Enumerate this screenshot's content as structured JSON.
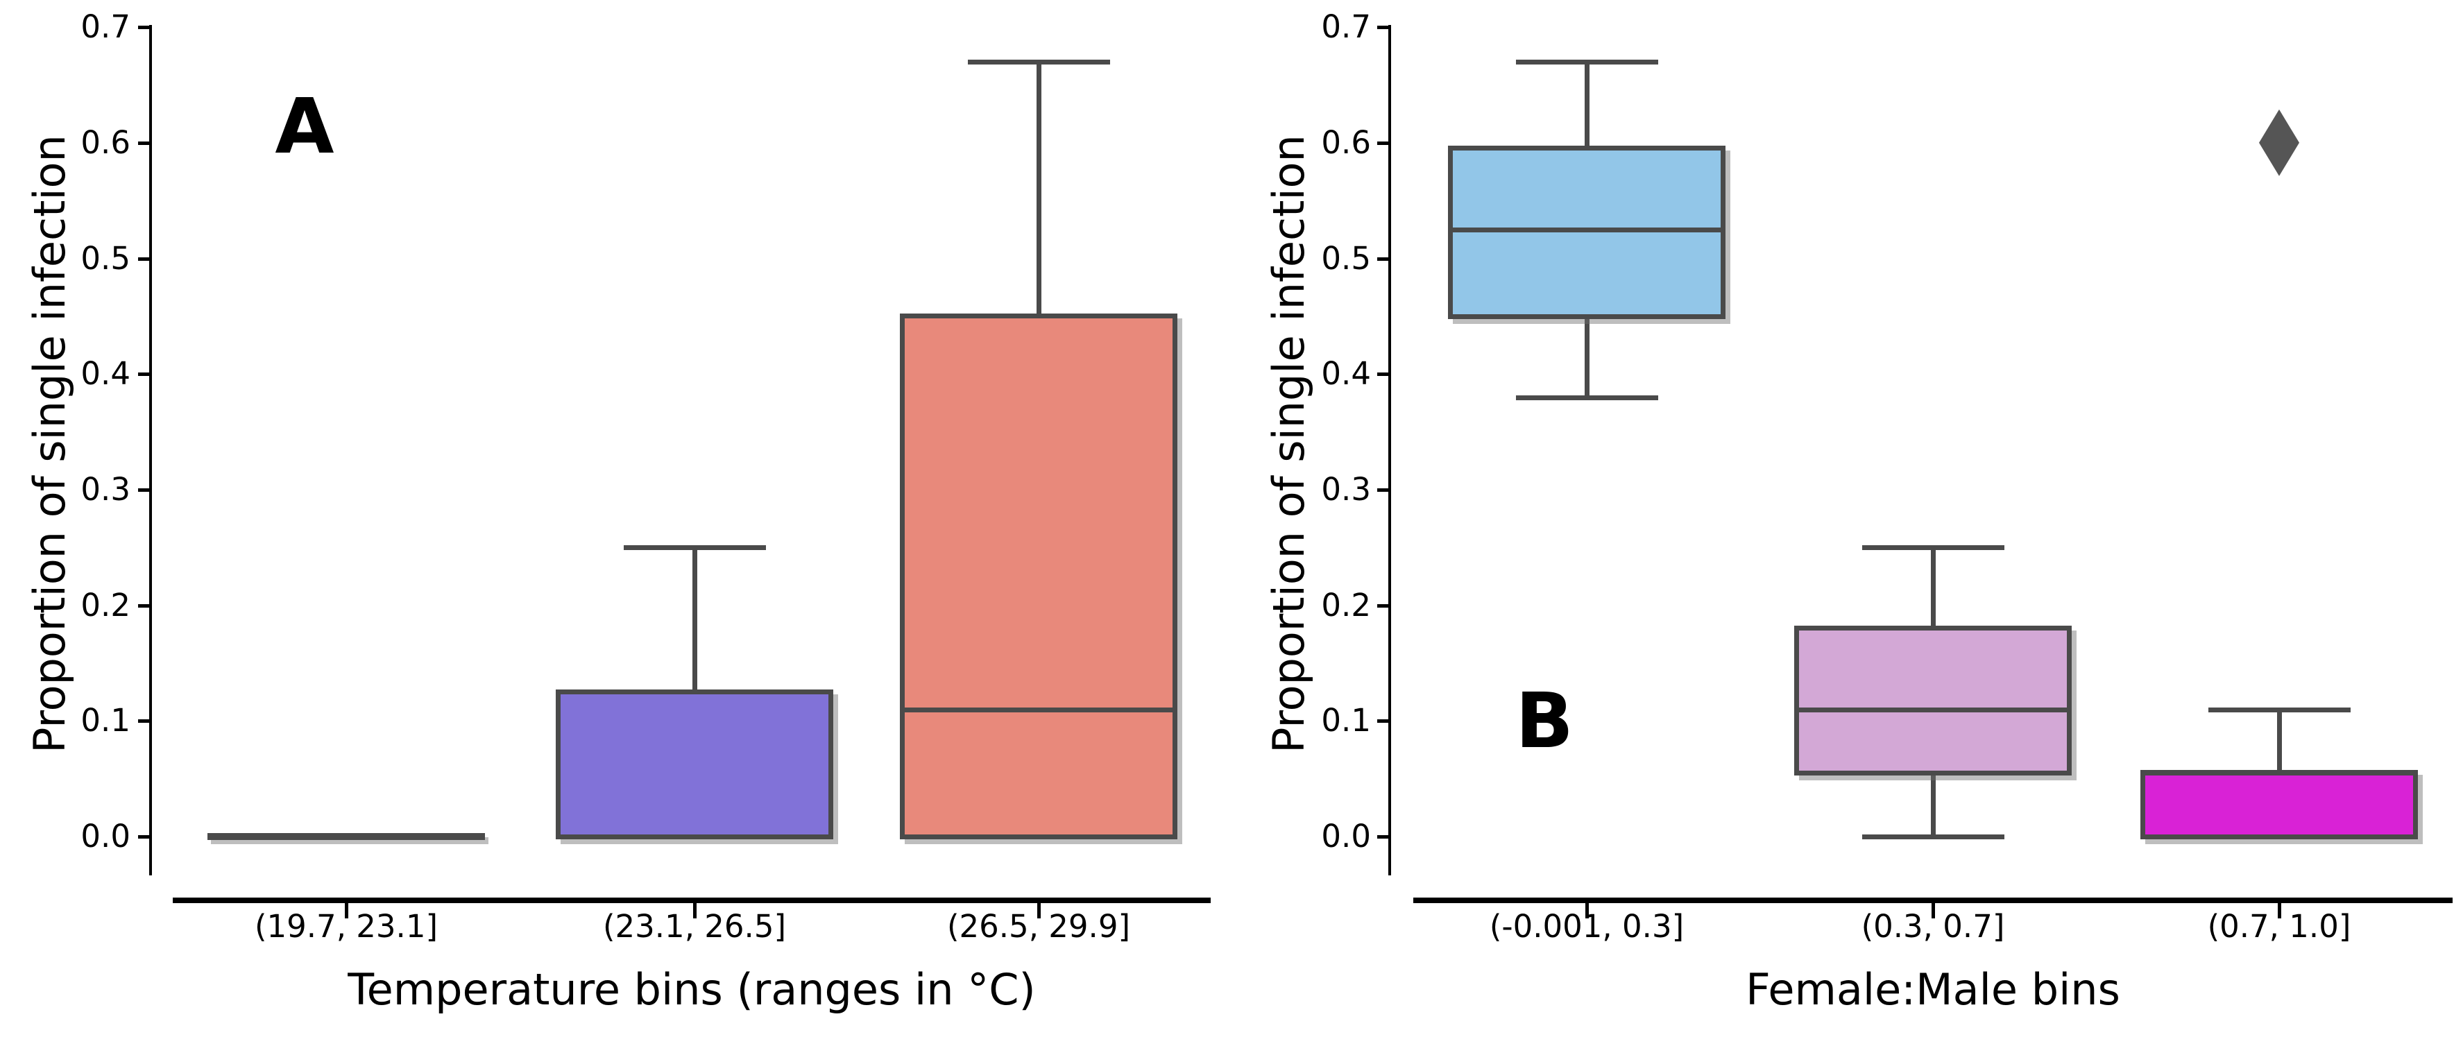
{
  "figure_title": "",
  "palette": {
    "edge": "#4a4a4a",
    "axis": "#000000",
    "text": "#000000",
    "outlier": "#555555",
    "panel_a_fills": [
      "#4a4a4a",
      "#8172d8",
      "#e8897b"
    ],
    "panel_b_fills": [
      "#92c6e8",
      "#d3a8d6",
      "#d922d6"
    ]
  },
  "chart_data": [
    {
      "type": "box",
      "panel_label": "A",
      "title": "",
      "xlabel": "Temperature bins (ranges in °C)",
      "ylabel": "Proportion of single infection",
      "ylim": [
        0.0,
        0.7
      ],
      "grid": false,
      "legend": null,
      "ytick_labels": [
        "0.0",
        "0.1",
        "0.2",
        "0.3",
        "0.4",
        "0.5",
        "0.6",
        "0.7"
      ],
      "categories": [
        "(19.7, 23.1]",
        "(23.1, 26.5]",
        "(26.5, 29.9]"
      ],
      "boxes": [
        {
          "category": "(19.7, 23.1]",
          "fill": "#4a4a4a",
          "degenerate": true,
          "q1": 0.0,
          "median": 0.0,
          "q3": 0.0,
          "whisker_low": 0.0,
          "whisker_high": 0.0,
          "outliers": []
        },
        {
          "category": "(23.1, 26.5]",
          "fill": "#8172d8",
          "degenerate": false,
          "q1": 0.0,
          "median": 0.0,
          "q3": 0.125,
          "whisker_low": 0.0,
          "whisker_high": 0.25,
          "outliers": []
        },
        {
          "category": "(26.5, 29.9]",
          "fill": "#e8897b",
          "degenerate": false,
          "q1": 0.0,
          "median": 0.11,
          "q3": 0.45,
          "whisker_low": 0.0,
          "whisker_high": 0.67,
          "outliers": []
        }
      ]
    },
    {
      "type": "box",
      "panel_label": "B",
      "title": "",
      "xlabel": "Female:Male bins",
      "ylabel": "Proportion of single infection",
      "ylim": [
        0.0,
        0.7
      ],
      "grid": false,
      "legend": null,
      "ytick_labels": [
        "0.0",
        "0.1",
        "0.2",
        "0.3",
        "0.4",
        "0.5",
        "0.6",
        "0.7"
      ],
      "categories": [
        "(-0.001, 0.3]",
        "(0.3, 0.7]",
        "(0.7, 1.0]"
      ],
      "boxes": [
        {
          "category": "(-0.001, 0.3]",
          "fill": "#92c6e8",
          "degenerate": false,
          "q1": 0.45,
          "median": 0.525,
          "q3": 0.595,
          "whisker_low": 0.38,
          "whisker_high": 0.67,
          "outliers": []
        },
        {
          "category": "(0.3, 0.7]",
          "fill": "#d3a8d6",
          "degenerate": false,
          "q1": 0.055,
          "median": 0.11,
          "q3": 0.18,
          "whisker_low": 0.0,
          "whisker_high": 0.25,
          "outliers": []
        },
        {
          "category": "(0.7, 1.0]",
          "fill": "#d922d6",
          "degenerate": false,
          "q1": 0.0,
          "median": 0.055,
          "q3": 0.055,
          "whisker_low": 0.0,
          "whisker_high": 0.11,
          "outliers": [
            0.6
          ]
        }
      ]
    }
  ]
}
